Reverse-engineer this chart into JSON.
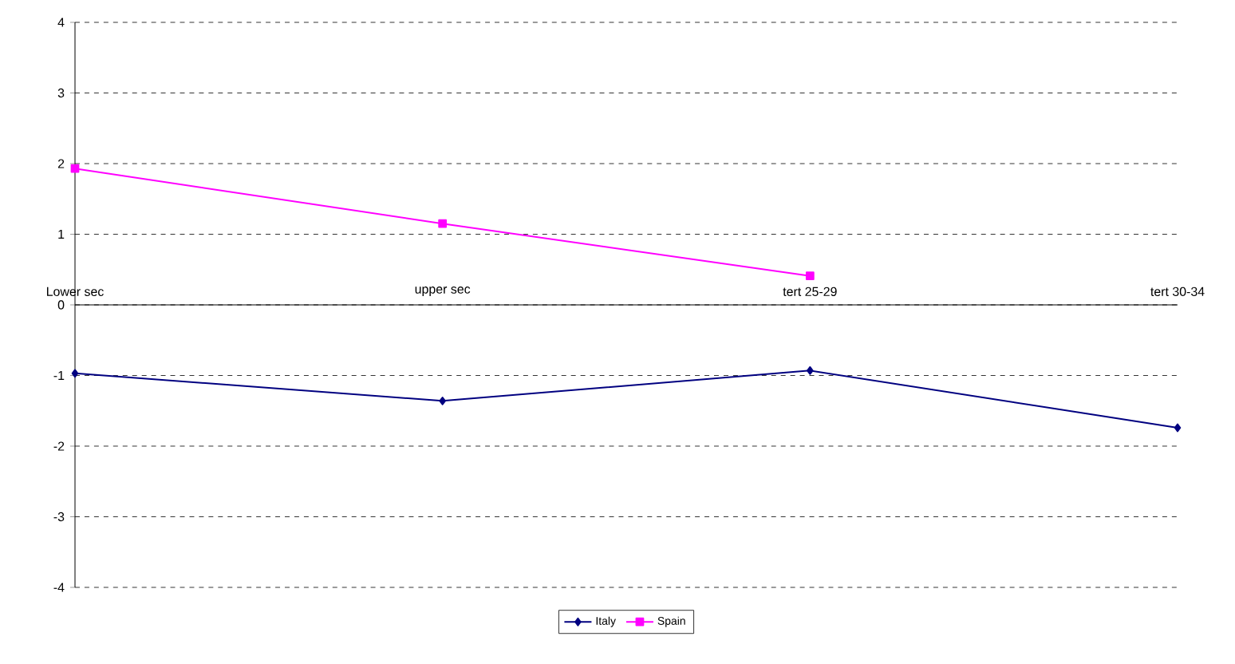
{
  "chart_data": {
    "type": "line",
    "categories": [
      "Lower sec",
      "upper sec",
      "tert 25-29",
      "tert 30-34"
    ],
    "series": [
      {
        "name": "Italy",
        "color": "#000080",
        "marker": "diamond",
        "values": [
          -0.97,
          -1.36,
          -0.93,
          -1.74
        ]
      },
      {
        "name": "Spain",
        "color": "#ff00ff",
        "marker": "square",
        "values": [
          1.93,
          1.15,
          0.41,
          null
        ]
      }
    ],
    "ylim": [
      -4,
      4
    ],
    "yticks": [
      -4,
      -3,
      -2,
      -1,
      0,
      1,
      2,
      3,
      4
    ],
    "grid": "y",
    "legend": "bottom",
    "line_style": "solid"
  }
}
